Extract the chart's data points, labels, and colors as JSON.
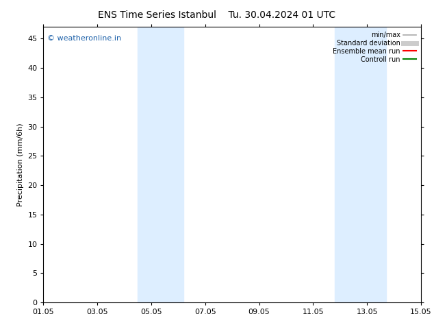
{
  "title_left": "ENS Time Series Istanbul",
  "title_right": "Tu. 30.04.2024 01 UTC",
  "ylabel": "Precipitation (mm/6h)",
  "ylim": [
    0,
    47
  ],
  "yticks": [
    0,
    5,
    10,
    15,
    20,
    25,
    30,
    35,
    40,
    45
  ],
  "xtick_labels": [
    "01.05",
    "03.05",
    "05.05",
    "07.05",
    "09.05",
    "11.05",
    "13.05",
    "15.05"
  ],
  "xtick_positions": [
    0,
    2,
    4,
    6,
    8,
    10,
    12,
    14
  ],
  "xlim": [
    0,
    14
  ],
  "shaded_bands": [
    {
      "xmin": 3.5,
      "xmax": 5.2,
      "color": "#ddeeff"
    },
    {
      "xmin": 10.8,
      "xmax": 12.7,
      "color": "#ddeeff"
    }
  ],
  "background_color": "#ffffff",
  "plot_bg_color": "#ffffff",
  "watermark": "© weatheronline.in",
  "watermark_color": "#1a5fa8",
  "legend_entries": [
    {
      "label": "min/max",
      "color": "#aaaaaa",
      "lw": 1.2,
      "style": "solid"
    },
    {
      "label": "Standard deviation",
      "color": "#cccccc",
      "lw": 5,
      "style": "solid"
    },
    {
      "label": "Ensemble mean run",
      "color": "#ff0000",
      "lw": 1.5,
      "style": "solid"
    },
    {
      "label": "Controll run",
      "color": "#008000",
      "lw": 1.5,
      "style": "solid"
    }
  ],
  "border_color": "#000000",
  "tick_color": "#000000",
  "font_size": 8,
  "title_font_size": 10
}
